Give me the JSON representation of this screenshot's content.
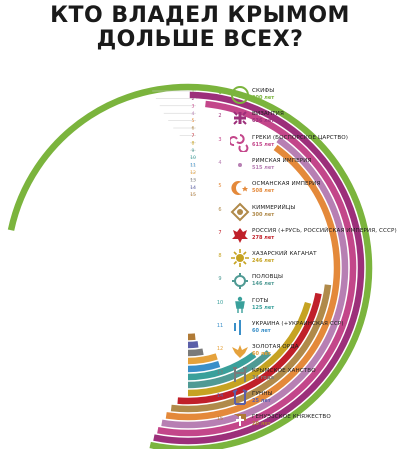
{
  "title": {
    "line1": "КТО ВЛАДЕЛ КРЫМОМ",
    "line2": "ДОЛЬШЕ ВСЕХ?"
  },
  "chart_data": {
    "type": "radial-bar",
    "unit": "лет",
    "categories": [
      "1",
      "2",
      "3",
      "4",
      "5",
      "6",
      "7",
      "8",
      "9",
      "10",
      "11",
      "12",
      "13",
      "14",
      "15"
    ],
    "values": [
      900,
      636,
      615,
      515,
      508,
      300,
      278,
      246,
      146,
      125,
      60,
      60,
      34,
      25,
      20
    ],
    "colors": [
      "#7bb43d",
      "#9c2f7a",
      "#c3468a",
      "#b77fb3",
      "#e4893a",
      "#b08a4a",
      "#c0202a",
      "#c6a322",
      "#4f9a94",
      "#3aa09b",
      "#3a8fc8",
      "#e5a23c",
      "#7a7a7a",
      "#5b5fa8",
      "#b07a36"
    ]
  },
  "legend": [
    {
      "num": "1",
      "name": "СКИФЫ",
      "duration": "900 лет",
      "icon": "scythian-spiral-icon"
    },
    {
      "num": "2",
      "name": "ВИЗАНТИЯ",
      "duration": "636 лет",
      "icon": "byzantine-cross-icon"
    },
    {
      "num": "3",
      "name": "ГРЕКИ (БОСПОРСКОЕ ЦАРСТВО)",
      "duration": "615 лет",
      "icon": "greek-triskelion-icon"
    },
    {
      "num": "4",
      "name": "РИМСКАЯ ИМПЕРИЯ",
      "duration": "515 лет",
      "icon": "roman-wreath-icon"
    },
    {
      "num": "5",
      "name": "ОСМАНСКАЯ ИМПЕРИЯ",
      "duration": "508 лет",
      "icon": "crescent-star-icon"
    },
    {
      "num": "6",
      "name": "КИММЕРИЙЦЫ",
      "duration": "300 лет",
      "icon": "cimmerian-emblem-icon"
    },
    {
      "num": "7",
      "name": "РОССИЯ (+РУСЬ, РОССИЙСКАЯ ИМПЕРИЯ, СССР)",
      "duration": "278 лет",
      "icon": "double-eagle-icon"
    },
    {
      "num": "8",
      "name": "ХАЗАРСКИЙ КАГАНАТ",
      "duration": "246 лет",
      "icon": "khazar-sun-icon"
    },
    {
      "num": "9",
      "name": "ПОЛОВЦЫ",
      "duration": "146 лет",
      "icon": "polovtsian-emblem-icon"
    },
    {
      "num": "10",
      "name": "ГОТЫ",
      "duration": "125 лет",
      "icon": "gothic-figure-icon"
    },
    {
      "num": "11",
      "name": "УКРАИНА (+УКРАИНСКАЯ ССР)",
      "duration": "60 лет",
      "icon": "trident-icon"
    },
    {
      "num": "12",
      "name": "ЗОЛОТАЯ ОРДА",
      "duration": "60 лет",
      "icon": "golden-horde-eagle-icon"
    },
    {
      "num": "13",
      "name": "КРЫМСКОЕ ХАНСТВО",
      "duration": "34 года",
      "icon": "tamga-icon"
    },
    {
      "num": "14",
      "name": "ГУННЫ",
      "duration": "25 лет",
      "icon": "hun-tamga-icon"
    },
    {
      "num": "15",
      "name": "ГЕНУЭЗСКОЕ КНЯЖЕСТВО",
      "duration": "20 лет",
      "icon": "genoese-shield-icon"
    }
  ]
}
